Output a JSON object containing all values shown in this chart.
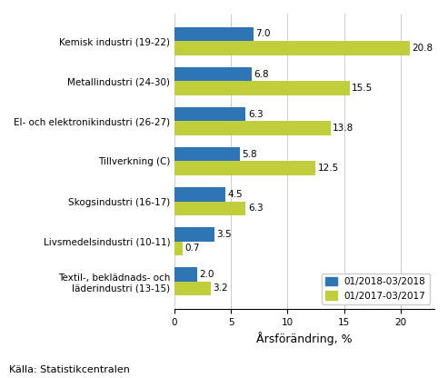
{
  "categories": [
    "Kemisk industri (19-22)",
    "Metallindustri (24-30)",
    "El- och elektronikindustri (26-27)",
    "Tillverkning (C)",
    "Skogsindustri (16-17)",
    "Livsmedelsindustri (10-11)",
    "Textil-, beklädnads- och\nläderindustri (13-15)"
  ],
  "series_2018": [
    7.0,
    6.8,
    6.3,
    5.8,
    4.5,
    3.5,
    2.0
  ],
  "series_2017": [
    20.8,
    15.5,
    13.8,
    12.5,
    6.3,
    0.7,
    3.2
  ],
  "color_2018": "#2E75B6",
  "color_2017": "#BFCE3A",
  "legend_2018": "01/2018-03/2018",
  "legend_2017": "01/2017-03/2017",
  "xlabel": "Årsförändring, %",
  "source": "Källa: Statistikcentralen",
  "xlim": [
    0,
    23
  ],
  "bar_height": 0.35,
  "label_fontsize": 7.5,
  "tick_fontsize": 7.5,
  "xlabel_fontsize": 9,
  "source_fontsize": 8
}
